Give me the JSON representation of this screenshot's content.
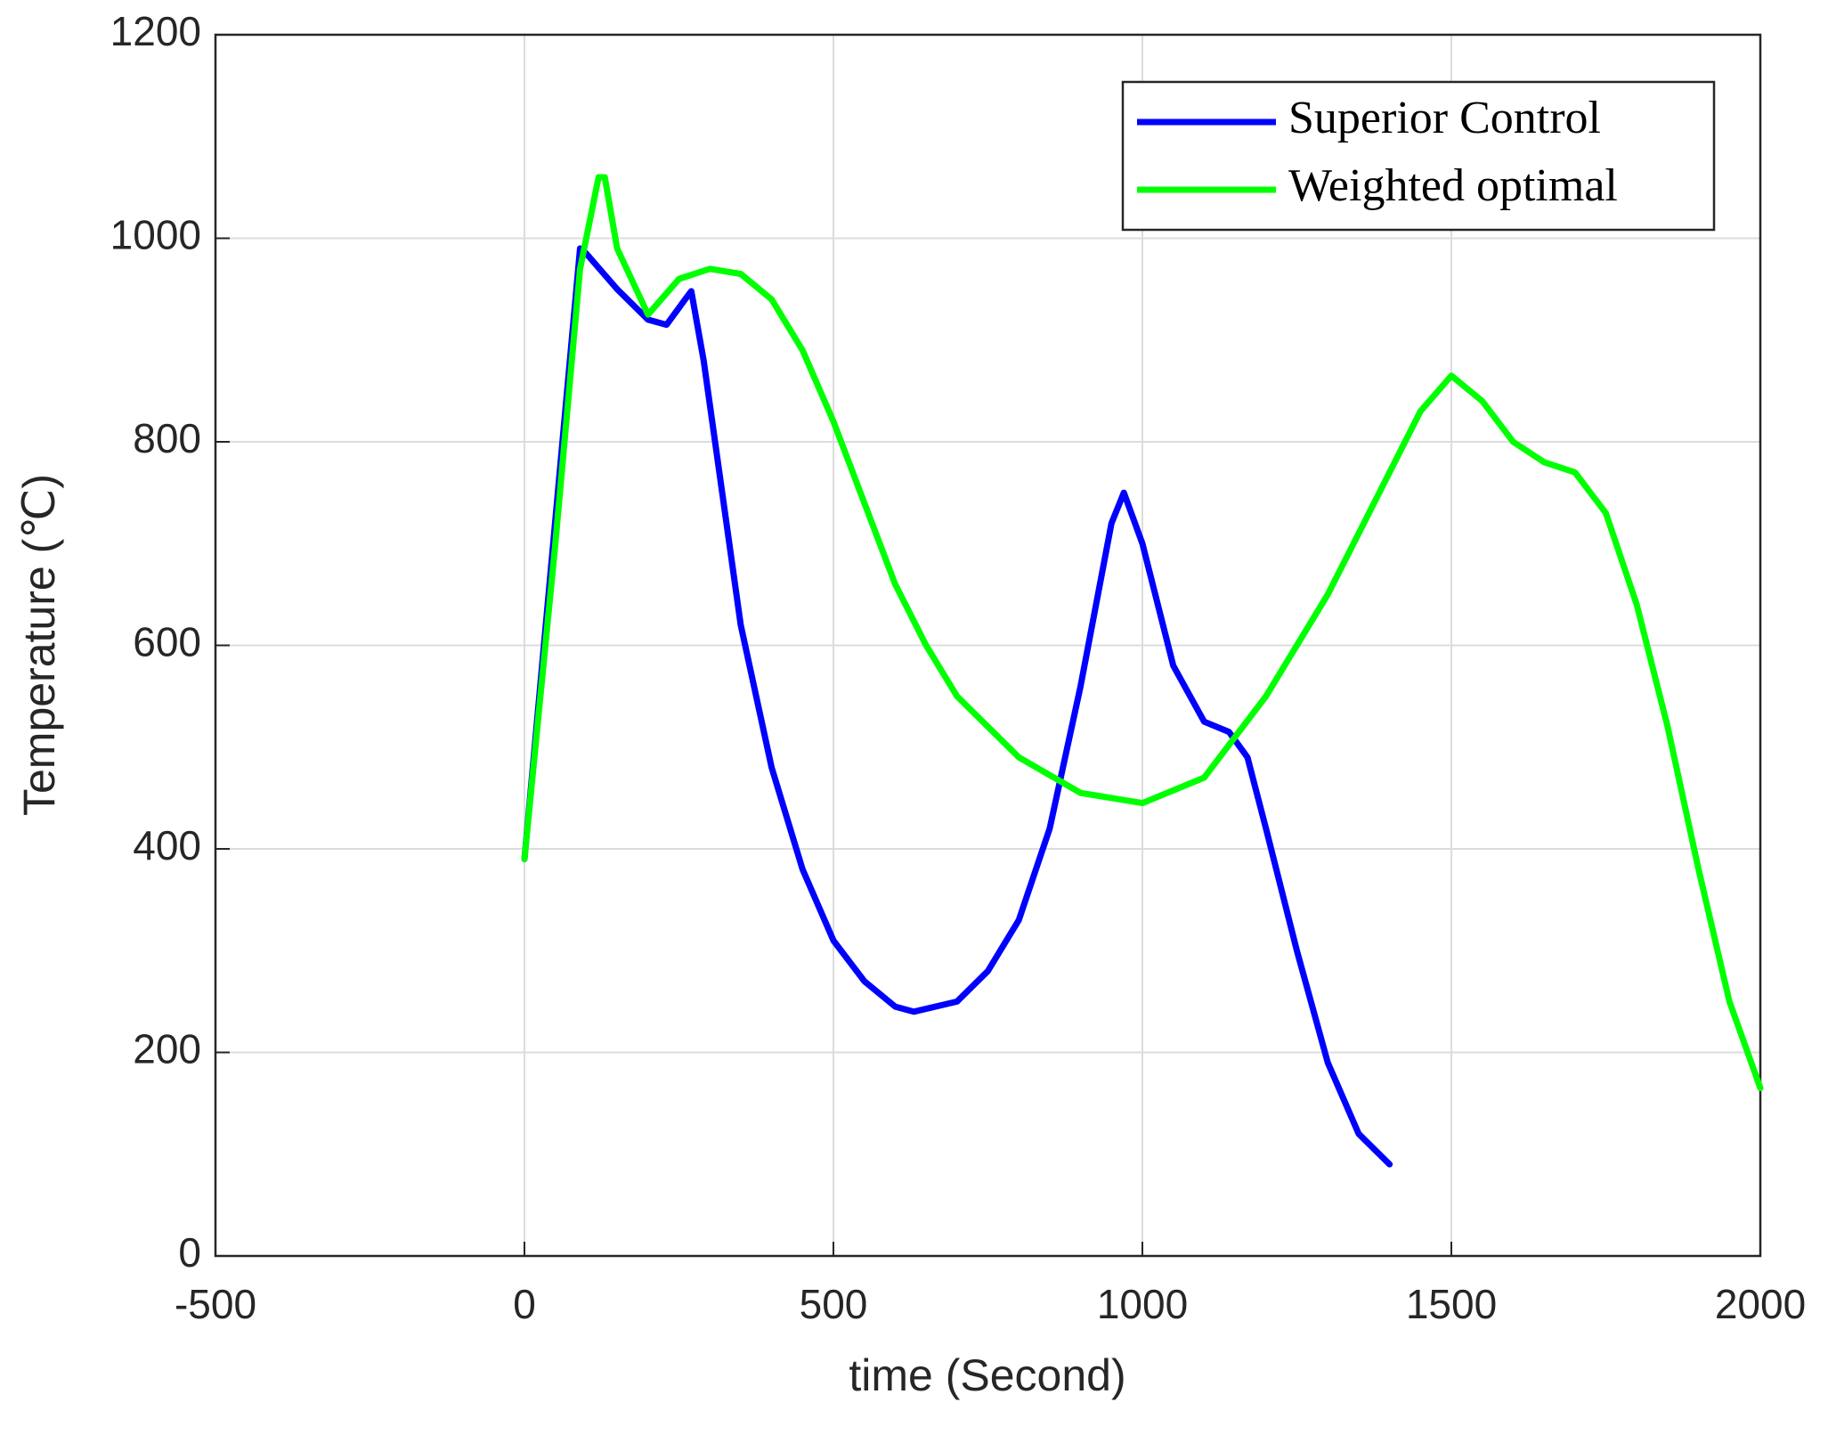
{
  "chart_data": {
    "type": "line",
    "xlabel": "time (Second)",
    "ylabel": "Temperature (℃)",
    "xlim": [
      -500,
      2000
    ],
    "xticks": [
      -500,
      0,
      500,
      1000,
      1500,
      2000
    ],
    "ylim": [
      0,
      1200
    ],
    "yticks": [
      0,
      200,
      400,
      600,
      800,
      1000,
      1200
    ],
    "grid": true,
    "legend": "upper right",
    "series": [
      {
        "name": "Superior Control",
        "color": "#0000ff",
        "x": [
          0,
          90,
          100,
          150,
          200,
          230,
          260,
          270,
          290,
          320,
          350,
          400,
          450,
          500,
          550,
          600,
          630,
          700,
          750,
          800,
          850,
          900,
          950,
          970,
          1000,
          1050,
          1100,
          1140,
          1170,
          1200,
          1250,
          1300,
          1350,
          1400
        ],
        "values": [
          390,
          990,
          985,
          950,
          920,
          915,
          940,
          948,
          880,
          750,
          620,
          480,
          380,
          310,
          270,
          245,
          240,
          250,
          280,
          330,
          420,
          560,
          720,
          750,
          700,
          580,
          525,
          515,
          490,
          420,
          300,
          190,
          120,
          90
        ]
      },
      {
        "name": "Weighted optimal",
        "color": "#00ff00",
        "x": [
          0,
          50,
          90,
          120,
          130,
          150,
          200,
          250,
          300,
          350,
          400,
          450,
          500,
          550,
          600,
          650,
          700,
          800,
          900,
          1000,
          1100,
          1200,
          1300,
          1400,
          1450,
          1500,
          1550,
          1600,
          1650,
          1700,
          1750,
          1800,
          1850,
          1900,
          1950,
          2000
        ],
        "values": [
          390,
          700,
          970,
          1060,
          1060,
          990,
          925,
          960,
          970,
          965,
          940,
          890,
          820,
          740,
          660,
          600,
          550,
          490,
          455,
          445,
          470,
          550,
          650,
          770,
          830,
          865,
          840,
          800,
          780,
          770,
          730,
          640,
          520,
          380,
          250,
          165
        ]
      }
    ]
  }
}
